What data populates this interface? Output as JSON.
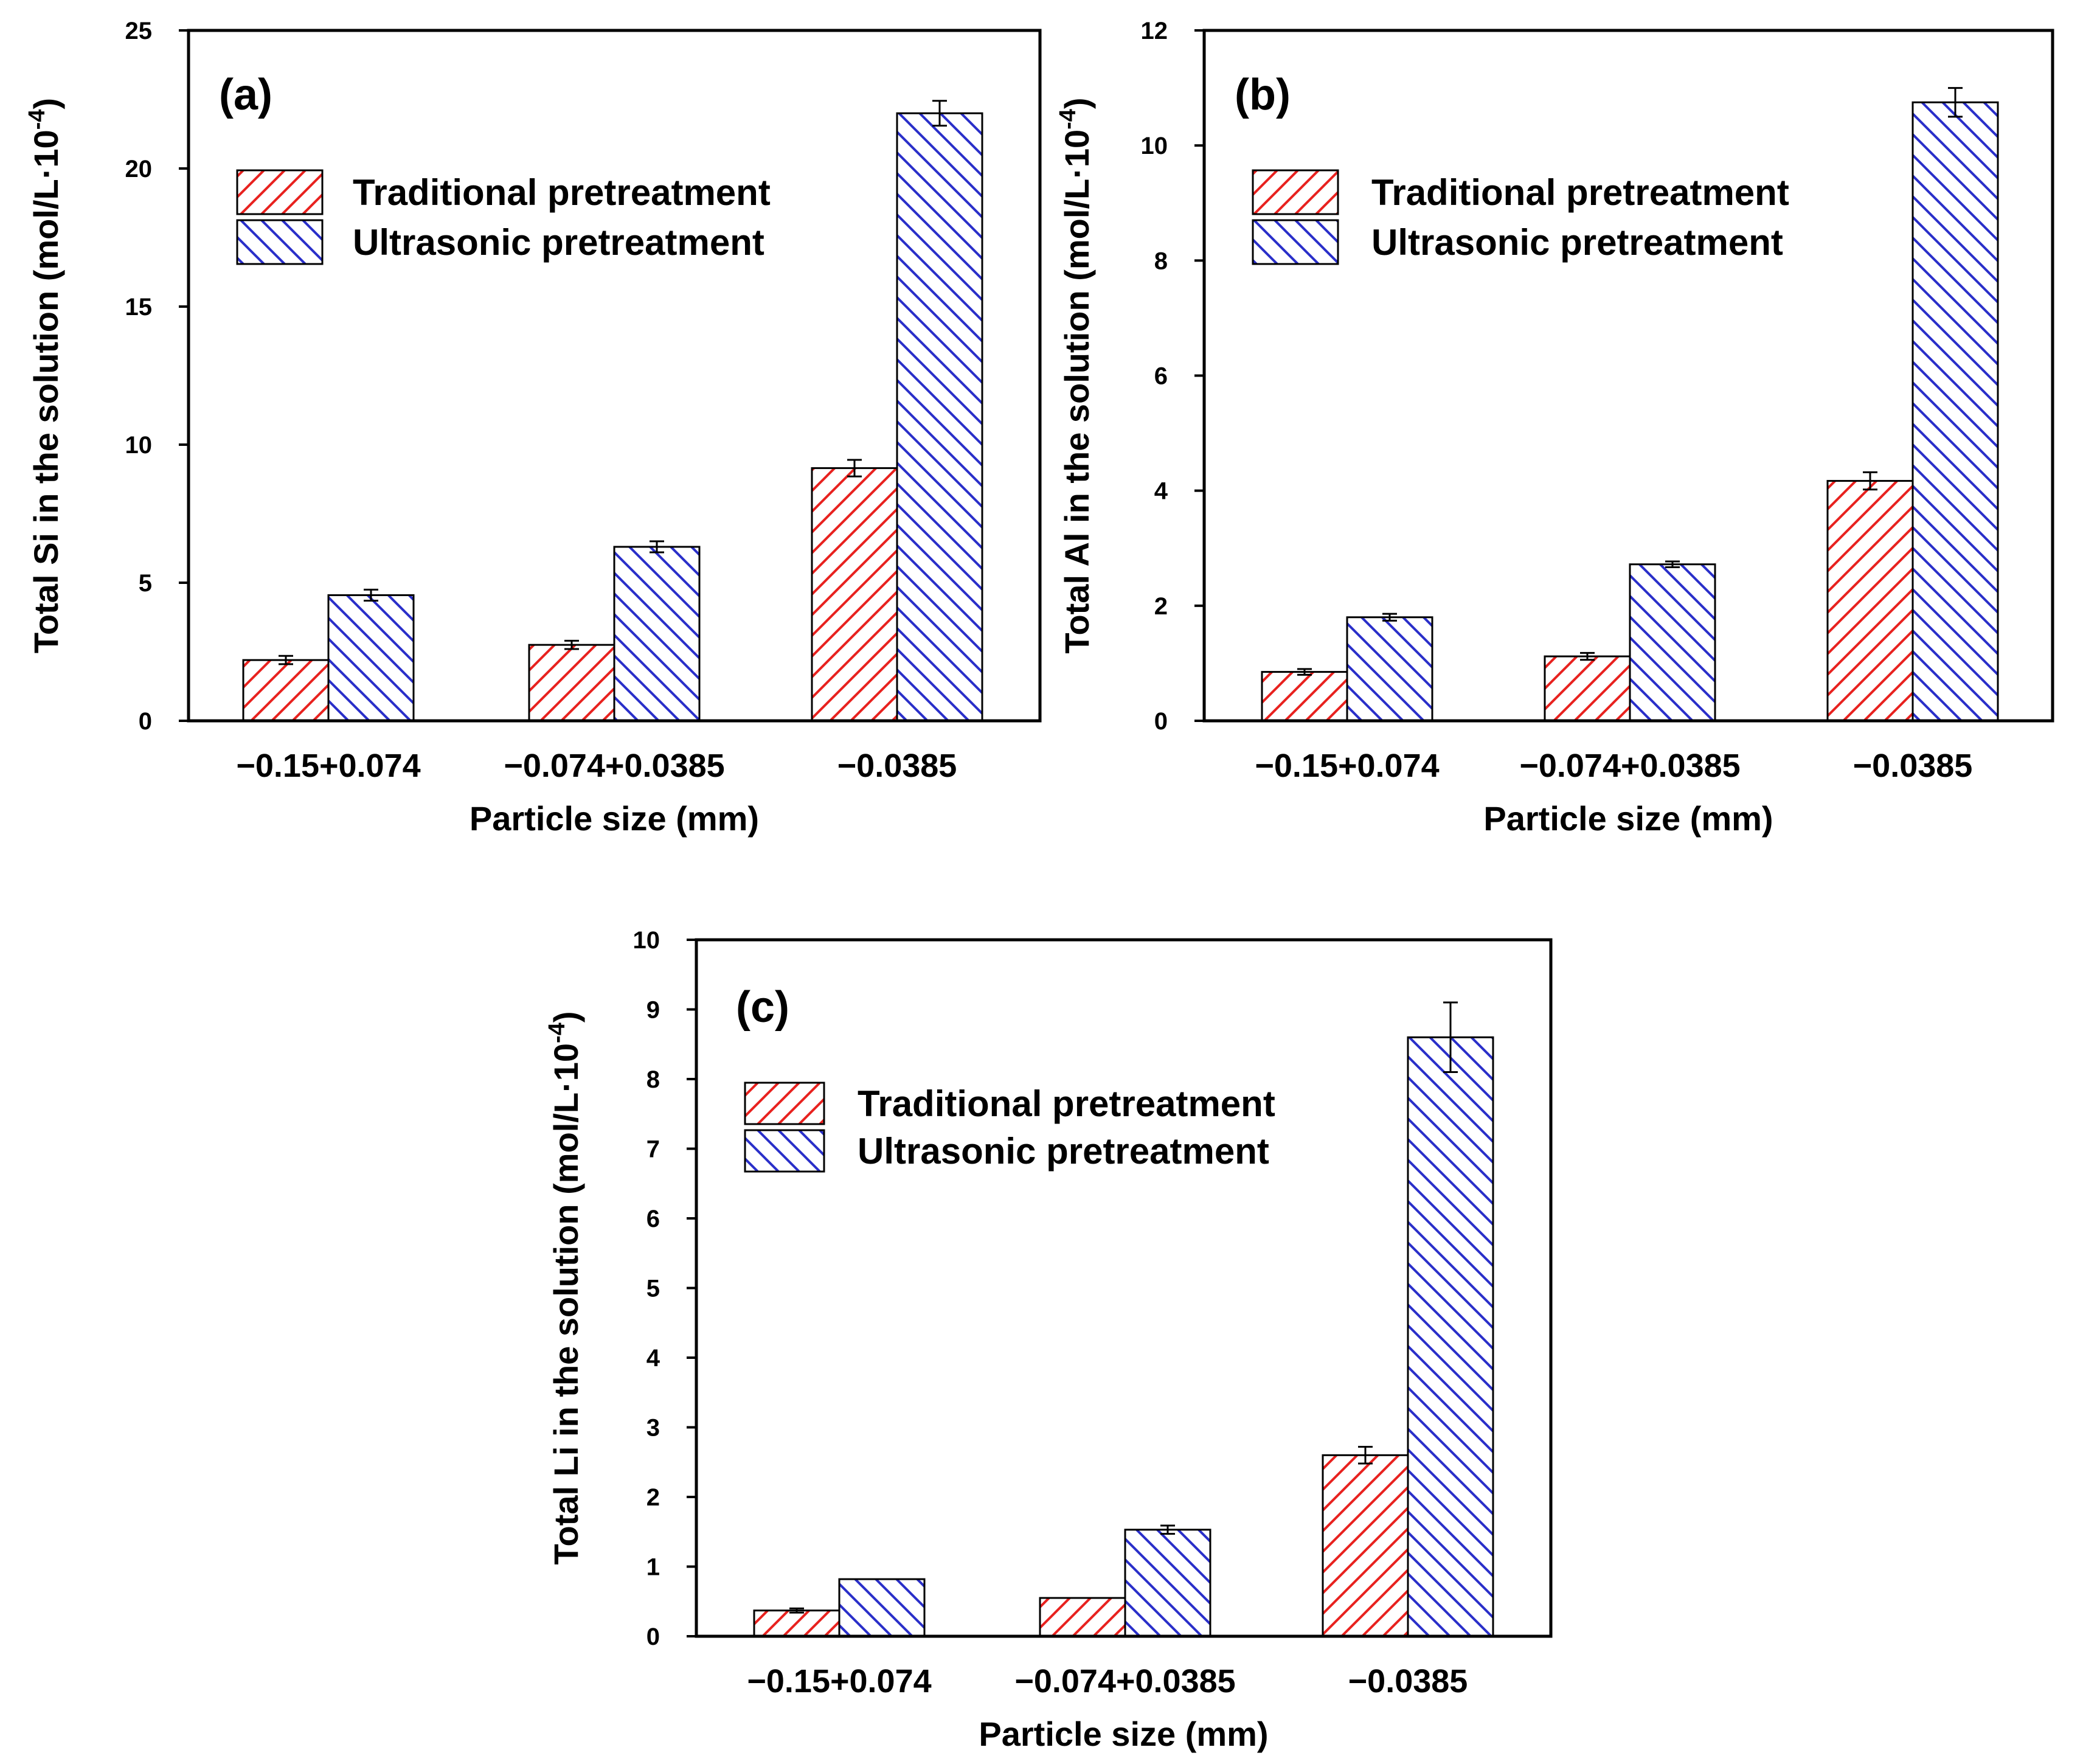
{
  "chart_data": [
    {
      "type": "bar",
      "panel_label": "(a)",
      "categories": [
        "−0.15+0.074",
        "−0.074+0.0385",
        "−0.0385"
      ],
      "series": [
        {
          "name": "Traditional pretreatment",
          "values": [
            2.2,
            2.75,
            9.15
          ],
          "errors": [
            0.15,
            0.15,
            0.3
          ],
          "color": "#e8221f"
        },
        {
          "name": "Ultrasonic pretreatment",
          "values": [
            4.55,
            6.3,
            22.0
          ],
          "errors": [
            0.2,
            0.2,
            0.45
          ],
          "color": "#2a2fc9"
        }
      ],
      "xlabel": "Particle size (mm)",
      "ylabel": "Total Si in the solution (mol/L·10",
      "ylabel_sup": "-4",
      "ylabel_end": ")",
      "ylim": [
        0,
        25
      ],
      "yticks": [
        0,
        5,
        10,
        15,
        20,
        25
      ],
      "legend_position": "upper-left",
      "grid": false
    },
    {
      "type": "bar",
      "panel_label": "(b)",
      "categories": [
        "−0.15+0.074",
        "−0.074+0.0385",
        "−0.0385"
      ],
      "series": [
        {
          "name": "Traditional pretreatment",
          "values": [
            0.85,
            1.12,
            4.17
          ],
          "errors": [
            0.05,
            0.06,
            0.15
          ],
          "color": "#e8221f"
        },
        {
          "name": "Ultrasonic pretreatment",
          "values": [
            1.8,
            2.72,
            10.75
          ],
          "errors": [
            0.06,
            0.05,
            0.25
          ],
          "color": "#2a2fc9"
        }
      ],
      "xlabel": "Particle size (mm)",
      "ylabel": "Total Al in the solution (mol/L·10",
      "ylabel_sup": "-4",
      "ylabel_end": ")",
      "ylim": [
        0,
        12
      ],
      "yticks": [
        0,
        2,
        4,
        6,
        8,
        10,
        12
      ],
      "legend_position": "upper-left",
      "grid": false
    },
    {
      "type": "bar",
      "panel_label": "(c)",
      "categories": [
        "−0.15+0.074",
        "−0.074+0.0385",
        "−0.0385"
      ],
      "series": [
        {
          "name": "Traditional pretreatment",
          "values": [
            0.37,
            0.55,
            2.6
          ],
          "errors": [
            0.03,
            0.0,
            0.12
          ],
          "color": "#e8221f"
        },
        {
          "name": "Ultrasonic pretreatment",
          "values": [
            0.82,
            1.53,
            8.6
          ],
          "errors": [
            0.0,
            0.06,
            0.5
          ],
          "color": "#2a2fc9"
        }
      ],
      "xlabel": "Particle size (mm)",
      "ylabel": "Total Li in the solution (mol/L·10",
      "ylabel_sup": "-4",
      "ylabel_end": ")",
      "ylim": [
        0,
        10
      ],
      "yticks": [
        0,
        1,
        2,
        3,
        4,
        5,
        6,
        7,
        8,
        9,
        10
      ],
      "legend_position": "upper-left",
      "grid": false
    }
  ]
}
